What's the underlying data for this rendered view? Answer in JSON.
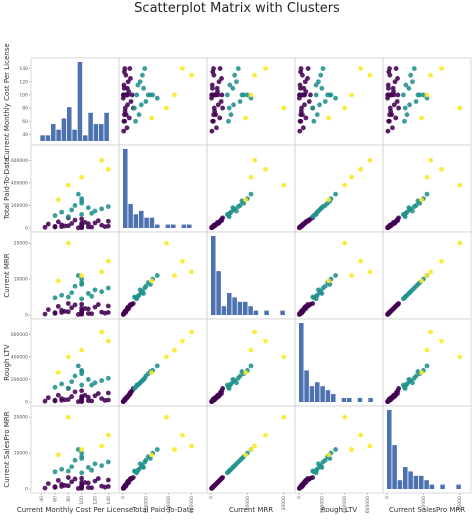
{
  "chart_data": {
    "type": "scatter",
    "title": "Scatterplot Matrix with Clusters",
    "variables": [
      "Current Monthly Cost Per License",
      "Total Paid-To-Date",
      "Current MRR",
      "Rough LTV",
      "Current SalesPro MRR"
    ],
    "ranges": [
      [
        30,
        150
      ],
      [
        0,
        700000
      ],
      [
        0,
        22000
      ],
      [
        0,
        700000
      ],
      [
        0,
        22000
      ]
    ],
    "ticks": [
      [
        {
          "v": 40,
          "label": "40"
        },
        {
          "v": 60,
          "label": "60"
        },
        {
          "v": 80,
          "label": "80"
        },
        {
          "v": 100,
          "label": "100"
        },
        {
          "v": 120,
          "label": "120"
        },
        {
          "v": 140,
          "label": "140"
        }
      ],
      [
        {
          "v": 0,
          "label": "0"
        },
        {
          "v": 200000,
          "label": "200000"
        },
        {
          "v": 400000,
          "label": "400000"
        },
        {
          "v": 600000,
          "label": "600000"
        }
      ],
      [
        {
          "v": 0,
          "label": "0"
        },
        {
          "v": 10000,
          "label": "10000"
        },
        {
          "v": 20000,
          "label": "20000"
        }
      ],
      [
        {
          "v": 0,
          "label": "0"
        },
        {
          "v": 200000,
          "label": "200000"
        },
        {
          "v": 400000,
          "label": "400000"
        },
        {
          "v": 600000,
          "label": "600000"
        }
      ],
      [
        {
          "v": 0,
          "label": "0"
        },
        {
          "v": 10000,
          "label": "10000"
        },
        {
          "v": 20000,
          "label": "20000"
        }
      ]
    ],
    "clusters": [
      {
        "id": 0,
        "color": "#440154"
      },
      {
        "id": 1,
        "color": "#21918c"
      },
      {
        "id": 2,
        "color": "#fde725"
      }
    ],
    "histogram_color": "#4c72b0",
    "points": [
      [
        60,
        8000,
        450,
        9000,
        450,
        0
      ],
      [
        70,
        12000,
        700,
        15000,
        700,
        0
      ],
      [
        80,
        20000,
        900,
        22000,
        900,
        0
      ],
      [
        100,
        5000,
        300,
        6000,
        300,
        0
      ],
      [
        100,
        30000,
        1200,
        40000,
        1200,
        0
      ],
      [
        100,
        15000,
        600,
        25000,
        600,
        0
      ],
      [
        105,
        50000,
        1800,
        60000,
        1800,
        0
      ],
      [
        110,
        10000,
        400,
        12000,
        400,
        0
      ],
      [
        120,
        45000,
        2200,
        55000,
        2200,
        0
      ],
      [
        130,
        25000,
        800,
        30000,
        800,
        0
      ],
      [
        140,
        60000,
        2500,
        80000,
        2500,
        0
      ],
      [
        50,
        35000,
        1500,
        38000,
        1500,
        0
      ],
      [
        90,
        70000,
        2800,
        90000,
        2800,
        0
      ],
      [
        75,
        18000,
        1000,
        20000,
        1000,
        0
      ],
      [
        95,
        2000,
        150,
        3000,
        150,
        0
      ],
      [
        85,
        40000,
        2000,
        48000,
        2000,
        0
      ],
      [
        115,
        8000,
        350,
        9000,
        350,
        0
      ],
      [
        135,
        12000,
        500,
        14000,
        500,
        0
      ],
      [
        65,
        55000,
        2400,
        60000,
        2400,
        0
      ],
      [
        100,
        80000,
        3000,
        100000,
        3000,
        0
      ],
      [
        100,
        22000,
        1100,
        26000,
        1100,
        0
      ],
      [
        45,
        6000,
        250,
        7000,
        250,
        0
      ],
      [
        125,
        65000,
        2900,
        75000,
        2900,
        0
      ],
      [
        100,
        3000,
        200,
        4000,
        200,
        0
      ],
      [
        70,
        28000,
        1300,
        30000,
        1300,
        0
      ],
      [
        110,
        38000,
        1700,
        42000,
        1700,
        0
      ],
      [
        80,
        90000,
        3200,
        120000,
        3200,
        0
      ],
      [
        140,
        16000,
        700,
        18000,
        700,
        0
      ],
      [
        100,
        42000,
        1900,
        50000,
        1900,
        0
      ],
      [
        60,
        14000,
        650,
        16000,
        650,
        0
      ],
      [
        100,
        120000,
        4500,
        150000,
        4500,
        1
      ],
      [
        110,
        180000,
        6000,
        200000,
        6000,
        1
      ],
      [
        120,
        150000,
        7000,
        170000,
        7000,
        1
      ],
      [
        90,
        200000,
        8000,
        230000,
        8000,
        1
      ],
      [
        80,
        100000,
        5000,
        120000,
        5000,
        1
      ],
      [
        100,
        220000,
        9000,
        250000,
        9000,
        1
      ],
      [
        130,
        170000,
        6500,
        190000,
        6500,
        1
      ],
      [
        70,
        140000,
        5500,
        160000,
        5500,
        1
      ],
      [
        100,
        260000,
        10000,
        280000,
        10000,
        1
      ],
      [
        60,
        110000,
        4800,
        130000,
        4800,
        1
      ],
      [
        140,
        190000,
        7500,
        210000,
        7500,
        1
      ],
      [
        100,
        240000,
        8500,
        270000,
        8500,
        1
      ],
      [
        85,
        160000,
        6200,
        180000,
        6200,
        1
      ],
      [
        115,
        130000,
        5200,
        150000,
        5200,
        1
      ],
      [
        95,
        300000,
        11000,
        320000,
        11000,
        1
      ],
      [
        65,
        250000,
        9500,
        260000,
        9500,
        2
      ],
      [
        100,
        450000,
        11000,
        460000,
        11000,
        2
      ],
      [
        130,
        600000,
        12000,
        620000,
        12000,
        2
      ],
      [
        80,
        380000,
        20000,
        400000,
        20000,
        2
      ],
      [
        140,
        520000,
        15000,
        540000,
        15000,
        2
      ]
    ]
  }
}
